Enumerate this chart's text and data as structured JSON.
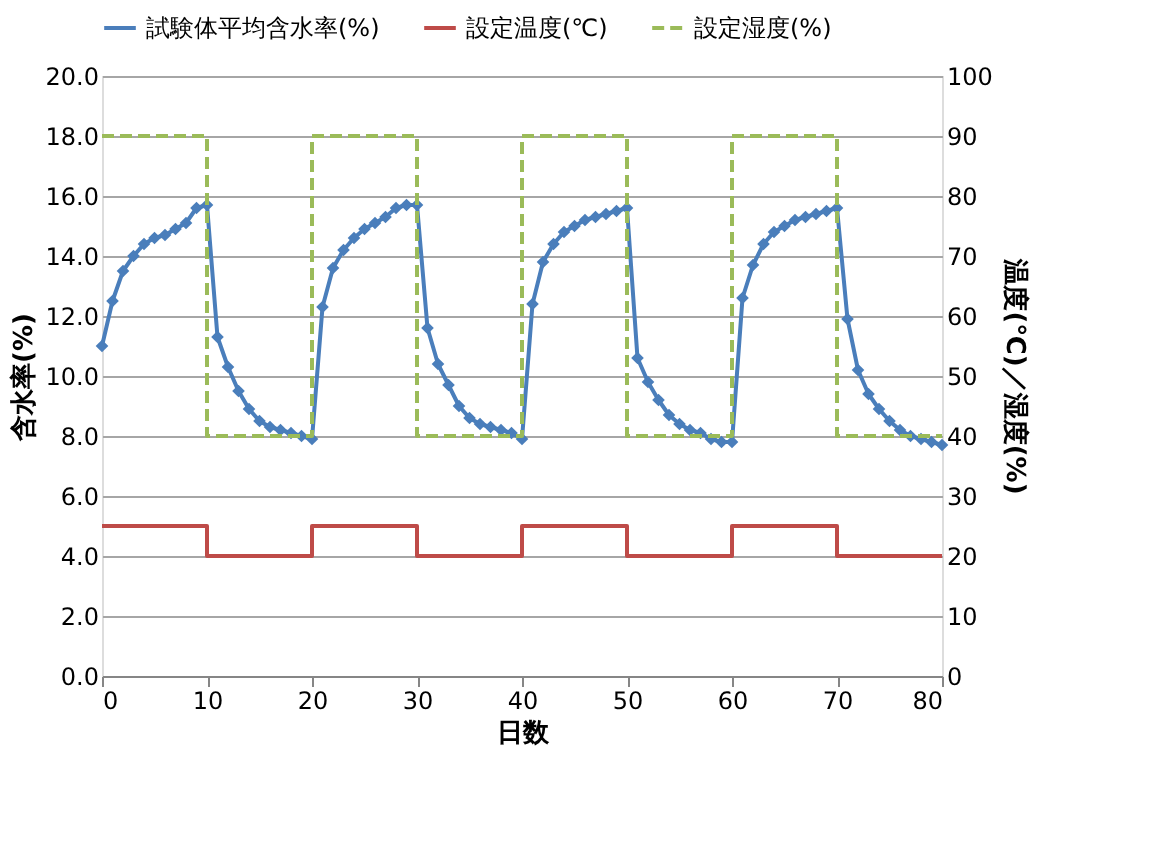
{
  "chart_data": {
    "type": "line",
    "xlabel": "日数",
    "ylabel": "含水率(%)",
    "y2label": "温度(℃)／湿度(%)",
    "xlim": [
      0,
      80
    ],
    "xticks": [
      0,
      10,
      20,
      30,
      40,
      50,
      60,
      70,
      80
    ],
    "ylim": [
      0,
      20
    ],
    "yticks": [
      {
        "value": 0,
        "label": "0.0"
      },
      {
        "value": 2,
        "label": "2.0"
      },
      {
        "value": 4,
        "label": "4.0"
      },
      {
        "value": 6,
        "label": "6.0"
      },
      {
        "value": 8,
        "label": "8.0"
      },
      {
        "value": 10,
        "label": "10.0"
      },
      {
        "value": 12,
        "label": "12.0"
      },
      {
        "value": 14,
        "label": "14.0"
      },
      {
        "value": 16,
        "label": "16.0"
      },
      {
        "value": 18,
        "label": "18.0"
      },
      {
        "value": 20,
        "label": "20.0"
      }
    ],
    "y2lim": [
      0,
      100
    ],
    "y2ticks": [
      0,
      10,
      20,
      30,
      40,
      50,
      60,
      70,
      80,
      90,
      100
    ],
    "grid": "y",
    "legend": "top",
    "series": [
      {
        "name": "試験体平均含水率(%)",
        "color": "#4a7ebb",
        "marker": "diamond",
        "line_style": "solid",
        "x": [
          0,
          1,
          2,
          3,
          4,
          5,
          6,
          7,
          8,
          9,
          10,
          11,
          12,
          13,
          14,
          15,
          16,
          17,
          18,
          19,
          20,
          21,
          22,
          23,
          24,
          25,
          26,
          27,
          28,
          29,
          30,
          31,
          32,
          33,
          34,
          35,
          36,
          37,
          38,
          39,
          40,
          41,
          42,
          43,
          44,
          45,
          46,
          47,
          48,
          49,
          50,
          51,
          52,
          53,
          54,
          55,
          56,
          57,
          58,
          59,
          60,
          61,
          62,
          63,
          64,
          65,
          66,
          67,
          68,
          69,
          70,
          71,
          72,
          73,
          74,
          75,
          76,
          77,
          78,
          79,
          80
        ],
        "values": [
          11.0,
          12.5,
          13.5,
          14.0,
          14.4,
          14.6,
          14.7,
          14.9,
          15.1,
          15.6,
          15.7,
          11.3,
          10.3,
          9.5,
          8.9,
          8.5,
          8.3,
          8.2,
          8.1,
          8.0,
          7.9,
          12.3,
          13.6,
          14.2,
          14.6,
          14.9,
          15.1,
          15.3,
          15.6,
          15.7,
          15.7,
          11.6,
          10.4,
          9.7,
          9.0,
          8.6,
          8.4,
          8.3,
          8.2,
          8.1,
          7.9,
          12.4,
          13.8,
          14.4,
          14.8,
          15.0,
          15.2,
          15.3,
          15.4,
          15.5,
          15.6,
          10.6,
          9.8,
          9.2,
          8.7,
          8.4,
          8.2,
          8.1,
          7.9,
          7.8,
          7.8,
          12.6,
          13.7,
          14.4,
          14.8,
          15.0,
          15.2,
          15.3,
          15.4,
          15.5,
          15.6,
          11.9,
          10.2,
          9.4,
          8.9,
          8.5,
          8.2,
          8.0,
          7.9,
          7.8,
          7.7
        ]
      },
      {
        "name": "設定温度(℃)",
        "color": "#be4b48",
        "type": "step",
        "axis": "y2",
        "marker": "none",
        "line_style": "solid",
        "x": [
          0,
          10,
          20,
          30,
          40,
          50,
          60,
          70,
          80
        ],
        "values": [
          25,
          20,
          25,
          20,
          25,
          20,
          25,
          20,
          20
        ]
      },
      {
        "name": "設定湿度(%)",
        "color": "#9bbb59",
        "type": "step",
        "axis": "y2",
        "marker": "none",
        "line_style": "dashed",
        "x": [
          0,
          10,
          20,
          30,
          40,
          50,
          60,
          70,
          80
        ],
        "values": [
          90,
          40,
          90,
          40,
          90,
          40,
          90,
          40,
          40
        ]
      }
    ]
  }
}
